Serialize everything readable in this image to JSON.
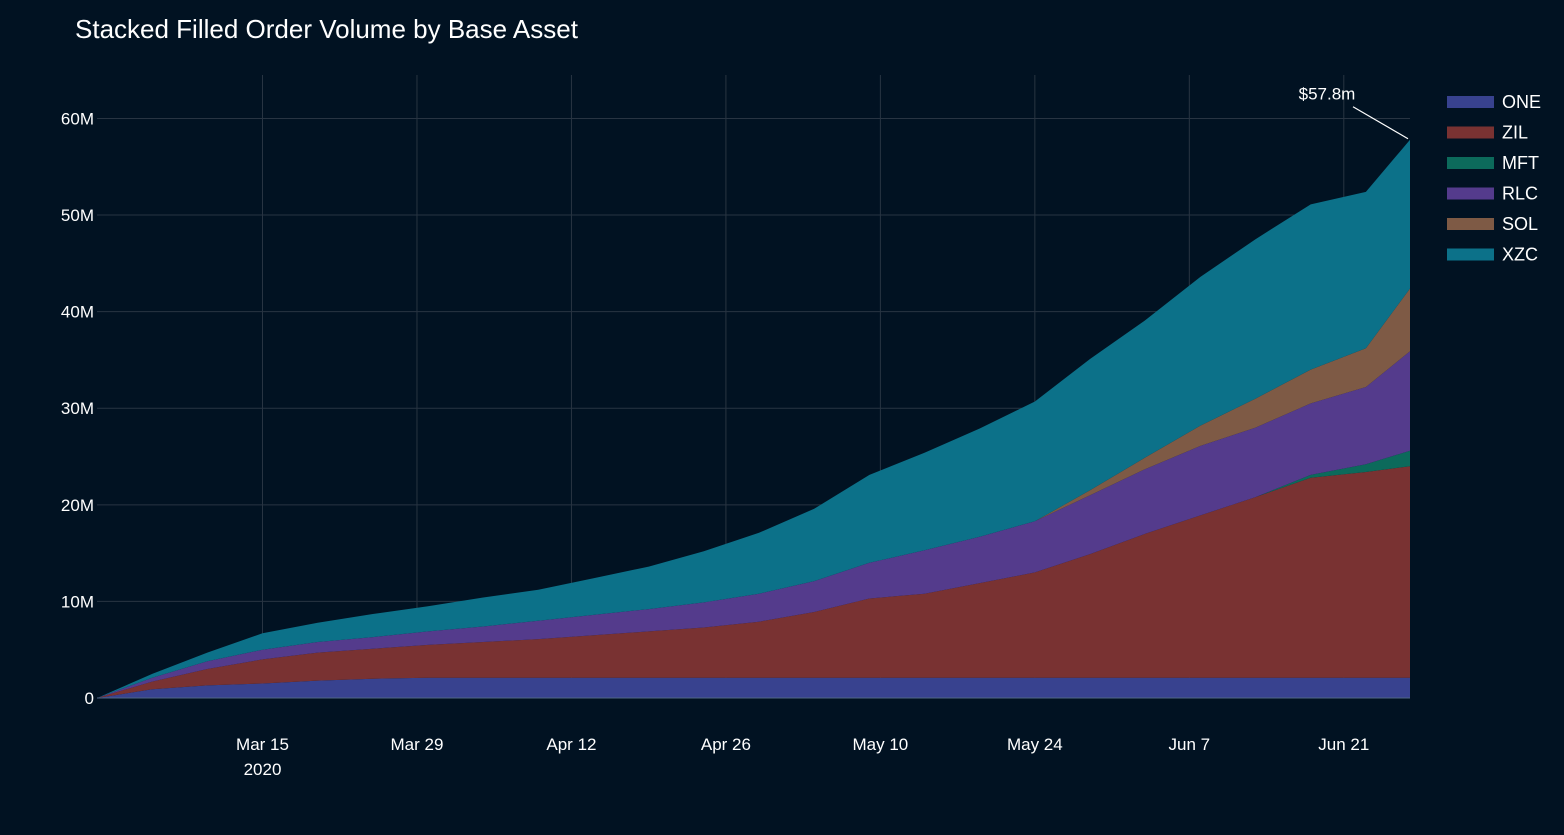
{
  "chart_data": {
    "type": "area",
    "stacked": true,
    "title": "Stacked Filled Order Volume by Base Asset",
    "xlabel": "",
    "ylabel": "",
    "ylim": [
      0,
      64500000
    ],
    "y_ticks": [
      0,
      10000000,
      20000000,
      30000000,
      40000000,
      50000000,
      60000000
    ],
    "y_tick_labels": [
      "0",
      "10M",
      "20M",
      "30M",
      "40M",
      "50M",
      "60M"
    ],
    "x_ticks": [
      "Mar 15",
      "Mar 29",
      "Apr 12",
      "Apr 26",
      "May 10",
      "May 24",
      "Jun 7",
      "Jun 21"
    ],
    "x_tick_days": [
      15,
      29,
      43,
      57,
      71,
      85,
      99,
      113
    ],
    "x_year_label": "2020",
    "x_start_day": 0,
    "x_end_day": 119,
    "grid": true,
    "legend_position": "top-right",
    "annotation": {
      "text": "$57.8m",
      "day": 119,
      "value": 57800000
    },
    "x": [
      0,
      5,
      10,
      15,
      20,
      25,
      30,
      35,
      40,
      45,
      50,
      55,
      60,
      65,
      70,
      75,
      80,
      85,
      90,
      95,
      100,
      105,
      110,
      115,
      119
    ],
    "series": [
      {
        "name": "ONE",
        "color": "#38428f",
        "values": [
          0,
          900000,
          1300000,
          1500000,
          1800000,
          2000000,
          2100000,
          2100000,
          2100000,
          2100000,
          2100000,
          2100000,
          2100000,
          2100000,
          2100000,
          2100000,
          2100000,
          2100000,
          2100000,
          2100000,
          2100000,
          2100000,
          2100000,
          2100000,
          2100000
        ]
      },
      {
        "name": "ZIL",
        "color": "#793232",
        "values": [
          0,
          800000,
          1700000,
          2500000,
          2900000,
          3100000,
          3400000,
          3700000,
          4000000,
          4400000,
          4800000,
          5200000,
          5800000,
          6800000,
          8200000,
          8700000,
          9800000,
          10900000,
          12800000,
          14900000,
          16800000,
          18700000,
          20700000,
          21300000,
          21900000
        ]
      },
      {
        "name": "MFT",
        "color": "#0c6a5b",
        "values": [
          0,
          0,
          0,
          0,
          0,
          0,
          0,
          0,
          0,
          0,
          0,
          0,
          0,
          0,
          0,
          0,
          0,
          0,
          0,
          0,
          0,
          0,
          300000,
          800000,
          1600000
        ]
      },
      {
        "name": "RLC",
        "color": "#543b8c",
        "values": [
          0,
          400000,
          800000,
          1000000,
          1100000,
          1200000,
          1400000,
          1600000,
          1900000,
          2100000,
          2300000,
          2600000,
          2900000,
          3200000,
          3700000,
          4500000,
          4800000,
          5300000,
          6100000,
          6700000,
          7200000,
          7200000,
          7400000,
          8000000,
          10300000
        ]
      },
      {
        "name": "SOL",
        "color": "#7e5a45",
        "values": [
          0,
          0,
          0,
          0,
          0,
          0,
          0,
          0,
          0,
          0,
          0,
          0,
          0,
          0,
          0,
          0,
          0,
          0,
          500000,
          1200000,
          2100000,
          3000000,
          3500000,
          4000000,
          6500000
        ]
      },
      {
        "name": "XZC",
        "color": "#0c7189",
        "values": [
          0,
          400000,
          900000,
          1700000,
          2000000,
          2400000,
          2600000,
          3000000,
          3200000,
          3800000,
          4400000,
          5300000,
          6300000,
          7500000,
          9100000,
          10100000,
          11200000,
          12400000,
          13600000,
          14200000,
          15400000,
          16500000,
          17100000,
          16200000,
          15400000
        ]
      }
    ]
  }
}
